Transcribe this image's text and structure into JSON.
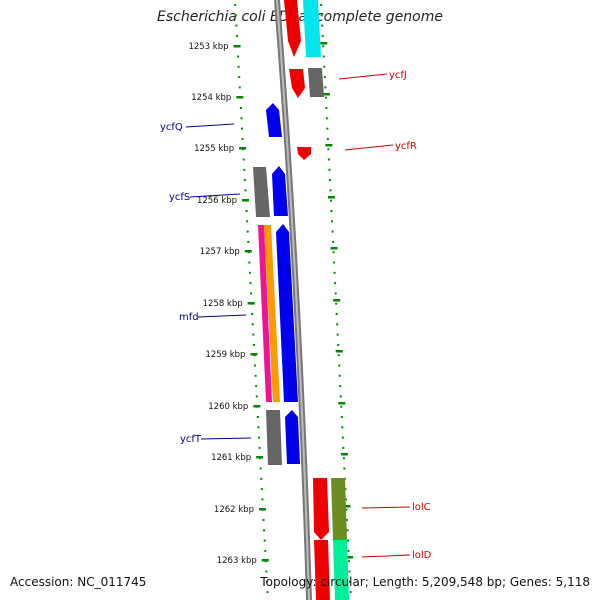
{
  "title": "Escherichia coli ED1a, complete genome",
  "accession": "Accession: NC_011745",
  "topology": "Topology: circular; Length: 5,209,548 bp; Genes: 5,118",
  "scale_labels": [
    "1253 kbp",
    "1254 kbp",
    "1255 kbp",
    "1256 kbp",
    "1257 kbp",
    "1258 kbp",
    "1259 kbp",
    "1260 kbp",
    "1261 kbp",
    "1262 kbp",
    "1263 kbp"
  ],
  "gene_labels_left": [
    "ycfQ",
    "ycfS",
    "mfd",
    "ycfT"
  ],
  "gene_labels_right": [
    "ycfJ",
    "ycfR",
    "lolC",
    "lolD"
  ],
  "colors": {
    "forward_gene": "#0000ee",
    "reverse_gene": "#ee0000",
    "other_gene": "#666666",
    "cyan_feature": "#00e5ee",
    "pink_feature": "#ee1493",
    "orange_feature": "#ff9900",
    "olive_feature": "#6b8e23",
    "spring_feature": "#00ee99",
    "ruler": "#008800",
    "backbone": "#888888",
    "left_label": "#00008b",
    "right_label": "#cc0000"
  }
}
